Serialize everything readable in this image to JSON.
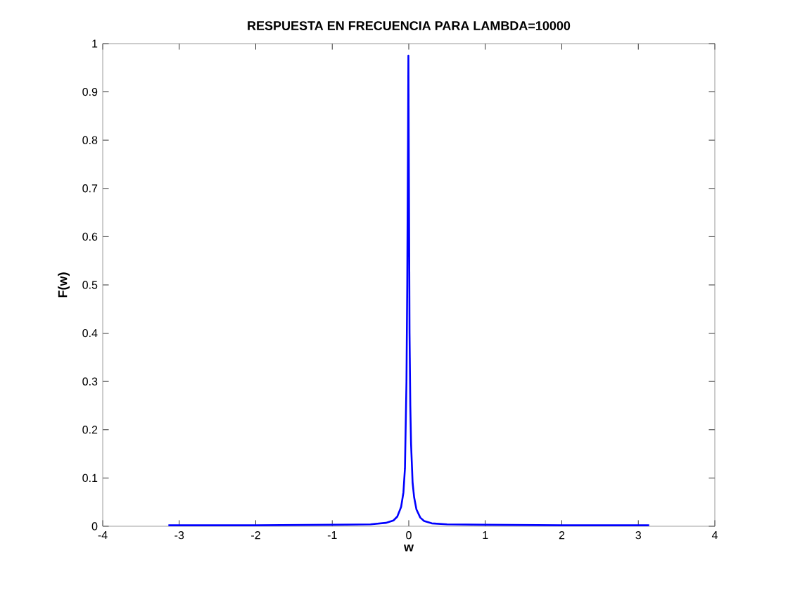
{
  "chart_data": {
    "type": "line",
    "title": "RESPUESTA EN FRECUENCIA PARA LAMBDA=10000",
    "xlabel": "w",
    "ylabel": "F(w)",
    "x": [
      -3.1416,
      -2,
      -1,
      -0.5,
      -0.3,
      -0.2,
      -0.15,
      -0.1,
      -0.07,
      -0.05,
      -0.03,
      -0.02,
      -0.01,
      -0.005,
      0,
      0.005,
      0.01,
      0.02,
      0.03,
      0.05,
      0.07,
      0.1,
      0.15,
      0.2,
      0.3,
      0.5,
      1,
      2,
      3.1416
    ],
    "series": [
      {
        "color": "#0000ff",
        "values": [
          0.002,
          0.002,
          0.003,
          0.004,
          0.007,
          0.012,
          0.02,
          0.04,
          0.07,
          0.12,
          0.3,
          0.5,
          0.8,
          0.975,
          0.78,
          0.6,
          0.4,
          0.25,
          0.17,
          0.09,
          0.06,
          0.035,
          0.018,
          0.011,
          0.006,
          0.004,
          0.003,
          0.002,
          0.002
        ]
      }
    ],
    "xlim": [
      -4,
      4
    ],
    "ylim": [
      0,
      1
    ],
    "xticks": [
      -4,
      -3,
      -2,
      -1,
      0,
      1,
      2,
      3,
      4
    ],
    "yticks": [
      0,
      0.1,
      0.2,
      0.3,
      0.4,
      0.5,
      0.6,
      0.7,
      0.8,
      0.9,
      1
    ],
    "grid": false,
    "marker": "none",
    "line_style": "solid"
  }
}
